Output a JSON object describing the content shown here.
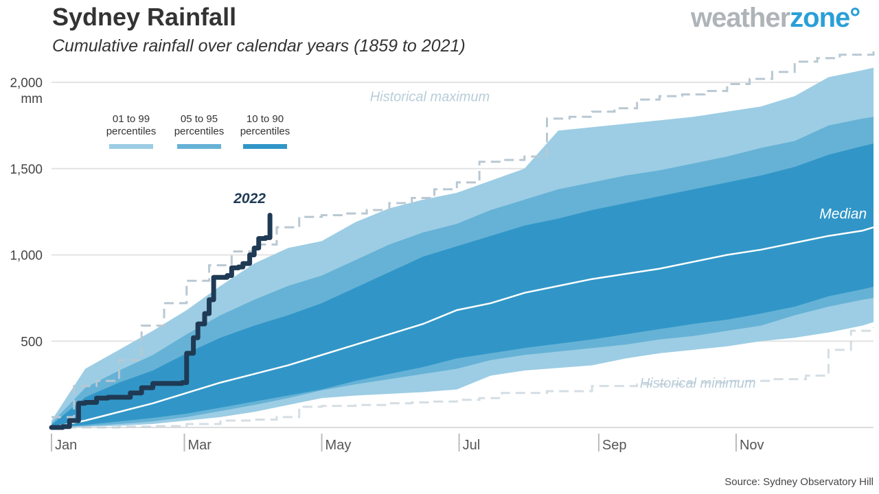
{
  "header": {
    "title": "Sydney Rainfall",
    "subtitle": "Cumulative rainfall over calendar years (1859 to 2021)"
  },
  "logo": {
    "part1": "weather",
    "part2": "zone",
    "degree": "°"
  },
  "source": "Source: Sydney Observatory Hill",
  "colors": {
    "p01_99": "#9ccde4",
    "p05_95": "#66b2d6",
    "p10_90": "#3196c7",
    "median": "#ffffff",
    "historical": "#b8c8d2",
    "y2022": "#1f3a54"
  },
  "chart_data": {
    "type": "area",
    "xlabel": "",
    "ylabel": "mm",
    "ylim": [
      0,
      2000
    ],
    "yticks": [
      500,
      1000,
      1500,
      2000
    ],
    "ytick_labels": [
      "500",
      "1,000",
      "1,500",
      "2,000"
    ],
    "xlim": [
      0,
      365
    ],
    "xticks": [
      {
        "day": 0,
        "label": "Jan"
      },
      {
        "day": 59,
        "label": "Mar"
      },
      {
        "day": 120,
        "label": "May"
      },
      {
        "day": 181,
        "label": "Jul"
      },
      {
        "day": 243,
        "label": "Sep"
      },
      {
        "day": 304,
        "label": "Nov"
      }
    ],
    "grid": true,
    "legend": {
      "placement": "top-left",
      "items": [
        {
          "label_line1": "01 to 99",
          "label_line2": "percentiles",
          "key": "p01_99"
        },
        {
          "label_line1": "05 to 95",
          "label_line2": "percentiles",
          "key": "p05_95"
        },
        {
          "label_line1": "10 to 90",
          "label_line2": "percentiles",
          "key": "p10_90"
        }
      ]
    },
    "x_days": [
      0,
      15,
      30,
      45,
      60,
      75,
      90,
      105,
      120,
      135,
      150,
      165,
      180,
      195,
      210,
      225,
      240,
      255,
      270,
      285,
      300,
      315,
      330,
      345,
      360,
      365
    ],
    "bands": [
      {
        "name": "01 to 99 percentiles",
        "upper": [
          40,
          340,
          450,
          560,
          680,
          820,
          950,
          1040,
          1080,
          1190,
          1270,
          1320,
          1360,
          1430,
          1500,
          1720,
          1740,
          1760,
          1780,
          1800,
          1830,
          1860,
          1920,
          2030,
          2070,
          2085
        ],
        "lower": [
          0,
          5,
          10,
          20,
          40,
          60,
          90,
          130,
          170,
          185,
          195,
          205,
          220,
          300,
          330,
          345,
          360,
          400,
          430,
          450,
          470,
          500,
          520,
          550,
          590,
          610
        ]
      },
      {
        "name": "05 to 95 percentiles",
        "upper": [
          25,
          230,
          330,
          420,
          540,
          650,
          740,
          820,
          880,
          970,
          1060,
          1130,
          1180,
          1260,
          1320,
          1380,
          1420,
          1460,
          1490,
          1530,
          1570,
          1620,
          1660,
          1750,
          1790,
          1800
        ],
        "lower": [
          0,
          8,
          20,
          35,
          60,
          95,
          130,
          170,
          215,
          250,
          280,
          310,
          340,
          390,
          420,
          440,
          460,
          480,
          510,
          530,
          560,
          590,
          650,
          700,
          740,
          750
        ]
      },
      {
        "name": "10 to 90 percentiles",
        "upper": [
          15,
          175,
          260,
          330,
          430,
          520,
          590,
          650,
          720,
          810,
          900,
          990,
          1050,
          1110,
          1170,
          1210,
          1260,
          1300,
          1340,
          1380,
          1420,
          1460,
          1510,
          1580,
          1630,
          1645
        ],
        "lower": [
          0,
          15,
          35,
          55,
          80,
          115,
          150,
          185,
          220,
          270,
          310,
          350,
          400,
          430,
          460,
          485,
          510,
          540,
          570,
          600,
          625,
          660,
          700,
          760,
          800,
          815
        ]
      }
    ],
    "series": [
      {
        "name": "Median",
        "x": [
          0,
          15,
          30,
          45,
          60,
          75,
          90,
          105,
          120,
          135,
          150,
          165,
          180,
          195,
          210,
          225,
          240,
          255,
          270,
          285,
          300,
          315,
          330,
          345,
          360,
          365
        ],
        "values": [
          0,
          40,
          90,
          140,
          200,
          260,
          310,
          360,
          420,
          480,
          540,
          600,
          680,
          720,
          780,
          820,
          860,
          890,
          920,
          960,
          1000,
          1030,
          1070,
          1110,
          1140,
          1160
        ]
      },
      {
        "name": "Historical maximum",
        "x": [
          0,
          10,
          20,
          30,
          40,
          50,
          60,
          70,
          80,
          90,
          100,
          110,
          120,
          130,
          140,
          150,
          160,
          170,
          180,
          190,
          200,
          210,
          220,
          230,
          240,
          250,
          260,
          270,
          280,
          290,
          300,
          310,
          320,
          330,
          340,
          350,
          365
        ],
        "values": [
          60,
          240,
          270,
          390,
          590,
          720,
          850,
          940,
          1020,
          1060,
          1160,
          1220,
          1230,
          1240,
          1260,
          1300,
          1330,
          1380,
          1420,
          1540,
          1550,
          1570,
          1790,
          1800,
          1830,
          1850,
          1900,
          1920,
          1930,
          1950,
          1990,
          2020,
          2060,
          2120,
          2140,
          2160,
          2190
        ]
      },
      {
        "name": "Historical minimum",
        "x": [
          0,
          15,
          30,
          45,
          60,
          75,
          90,
          100,
          110,
          120,
          135,
          150,
          160,
          170,
          180,
          190,
          200,
          220,
          240,
          260,
          280,
          300,
          320,
          335,
          345,
          355,
          365
        ],
        "values": [
          0,
          0,
          5,
          8,
          20,
          40,
          45,
          60,
          120,
          125,
          130,
          140,
          145,
          150,
          160,
          170,
          200,
          210,
          240,
          250,
          260,
          270,
          280,
          300,
          450,
          560,
          580
        ]
      },
      {
        "name": "2022",
        "x": [
          0,
          5,
          8,
          12,
          15,
          20,
          25,
          30,
          35,
          40,
          45,
          50,
          52,
          55,
          58,
          60,
          63,
          65,
          68,
          70,
          72,
          75,
          78,
          80,
          83,
          85,
          88,
          90,
          92,
          95,
          97
        ],
        "values": [
          0,
          5,
          40,
          140,
          145,
          170,
          175,
          175,
          200,
          230,
          255,
          255,
          255,
          255,
          260,
          430,
          520,
          600,
          660,
          740,
          870,
          870,
          880,
          925,
          930,
          950,
          1000,
          1040,
          1095,
          1100,
          1230
        ]
      }
    ],
    "annotations": [
      {
        "text": "Historical maximum",
        "at_day": 168,
        "at_value": 1890
      },
      {
        "text": "Historical minimum",
        "at_day": 287,
        "at_value": 230
      },
      {
        "text": "Median",
        "at_day": 362,
        "at_value": 1210
      },
      {
        "text": "2022",
        "at_day": 88,
        "at_value": 1300
      }
    ]
  }
}
